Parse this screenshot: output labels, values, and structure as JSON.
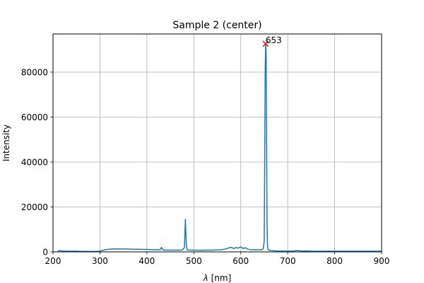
{
  "chart_data": {
    "type": "line",
    "title": "Sample 2 (center)",
    "xlabel_symbol": "λ",
    "xlabel_unit": " [nm]",
    "ylabel": "Intensity",
    "xlim": [
      200,
      900
    ],
    "ylim": [
      0,
      97000
    ],
    "xticks": [
      200,
      300,
      400,
      500,
      600,
      700,
      800,
      900
    ],
    "yticks": [
      0,
      20000,
      40000,
      60000,
      80000
    ],
    "grid": true,
    "series": [
      {
        "color": "#1f77b4",
        "x": [
          210,
          215,
          220,
          230,
          240,
          250,
          260,
          270,
          280,
          290,
          300,
          305,
          310,
          320,
          330,
          340,
          350,
          360,
          370,
          380,
          390,
          400,
          410,
          420,
          428,
          431,
          434,
          440,
          450,
          460,
          470,
          476,
          480,
          482,
          484,
          486,
          488,
          492,
          500,
          510,
          520,
          530,
          540,
          550,
          560,
          570,
          575,
          580,
          585,
          590,
          595,
          600,
          605,
          610,
          615,
          620,
          630,
          640,
          645,
          648,
          650,
          651,
          652,
          653,
          654,
          655,
          656,
          657,
          658,
          660,
          665,
          670,
          680,
          690,
          700,
          710,
          720,
          730,
          740,
          750,
          760,
          770,
          780,
          790,
          800,
          810,
          820,
          830,
          840,
          850,
          860,
          870,
          880,
          890,
          900
        ],
        "y": [
          300,
          600,
          400,
          300,
          300,
          300,
          250,
          250,
          200,
          200,
          300,
          600,
          900,
          1200,
          1350,
          1300,
          1300,
          1250,
          1200,
          1200,
          1100,
          1100,
          1000,
          1000,
          900,
          2000,
          900,
          800,
          800,
          800,
          800,
          900,
          2000,
          14500,
          3000,
          900,
          800,
          800,
          800,
          700,
          700,
          800,
          800,
          900,
          1000,
          1400,
          1800,
          2000,
          1500,
          1900,
          1700,
          2200,
          1500,
          1800,
          1200,
          1000,
          900,
          900,
          900,
          1500,
          5000,
          40000,
          80000,
          92600,
          88000,
          50000,
          12000,
          2500,
          1000,
          800,
          600,
          500,
          400,
          350,
          350,
          300,
          600,
          350,
          450,
          300,
          300,
          300,
          300,
          300,
          300,
          300,
          300,
          300,
          300,
          300,
          300,
          300,
          300,
          300,
          300
        ]
      }
    ],
    "peak": {
      "x": 653,
      "y": 92600,
      "label": "653",
      "marker_color": "#d62728"
    }
  }
}
